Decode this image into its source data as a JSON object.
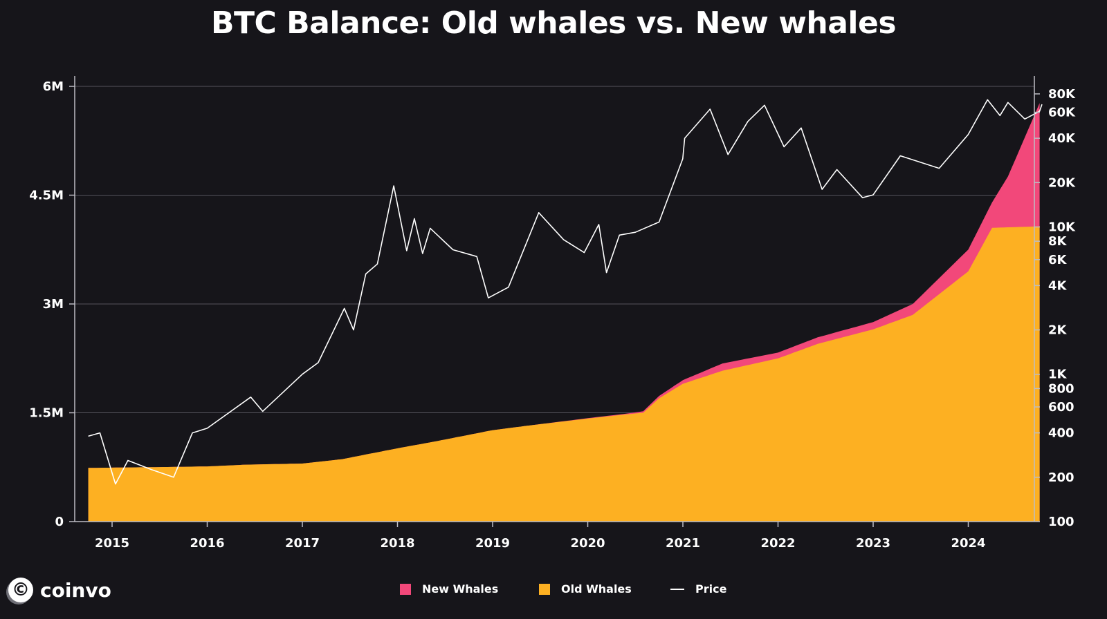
{
  "chart_data": {
    "type": "area",
    "title": "BTC Balance: Old whales vs. New whales",
    "x_ticks": [
      "2015",
      "2016",
      "2017",
      "2018",
      "2019",
      "2020",
      "2021",
      "2022",
      "2023",
      "2024"
    ],
    "y_left_ticks": [
      {
        "value": 0,
        "label": "0"
      },
      {
        "value": 1500000,
        "label": "1.5M"
      },
      {
        "value": 3000000,
        "label": "3M"
      },
      {
        "value": 4500000,
        "label": "4.5M"
      },
      {
        "value": 6000000,
        "label": "6M"
      }
    ],
    "y_left_range": [
      0,
      6000000
    ],
    "y_right_scale": "log",
    "y_right_range": [
      100,
      90000
    ],
    "y_right_ticks": [
      {
        "value": 100,
        "label": "100"
      },
      {
        "value": 200,
        "label": "200"
      },
      {
        "value": 400,
        "label": "400"
      },
      {
        "value": 600,
        "label": "600"
      },
      {
        "value": 800,
        "label": "800"
      },
      {
        "value": 1000,
        "label": "1K"
      },
      {
        "value": 2000,
        "label": "2K"
      },
      {
        "value": 4000,
        "label": "4K"
      },
      {
        "value": 6000,
        "label": "6K"
      },
      {
        "value": 8000,
        "label": "8K"
      },
      {
        "value": 10000,
        "label": "10K"
      },
      {
        "value": 20000,
        "label": "20K"
      },
      {
        "value": 40000,
        "label": "40K"
      },
      {
        "value": 60000,
        "label": "60K"
      },
      {
        "value": 80000,
        "label": "80K"
      }
    ],
    "grid": "horizontal",
    "legend_position": "bottom",
    "series": [
      {
        "name": "Old Whales",
        "kind": "area",
        "axis": "left",
        "color": "#fdb022",
        "points": [
          [
            "2014-10-01",
            740000
          ],
          [
            "2015-06-01",
            750000
          ],
          [
            "2016-01-01",
            760000
          ],
          [
            "2016-06-01",
            785000
          ],
          [
            "2017-01-01",
            800000
          ],
          [
            "2017-06-01",
            860000
          ],
          [
            "2018-01-01",
            1010000
          ],
          [
            "2018-06-01",
            1110000
          ],
          [
            "2019-01-01",
            1260000
          ],
          [
            "2019-06-01",
            1330000
          ],
          [
            "2020-01-01",
            1420000
          ],
          [
            "2020-06-01",
            1480000
          ],
          [
            "2020-08-01",
            1500000
          ],
          [
            "2020-10-01",
            1700000
          ],
          [
            "2021-01-01",
            1900000
          ],
          [
            "2021-06-01",
            2080000
          ],
          [
            "2022-01-01",
            2250000
          ],
          [
            "2022-06-01",
            2450000
          ],
          [
            "2023-01-01",
            2650000
          ],
          [
            "2023-06-01",
            2850000
          ],
          [
            "2024-01-01",
            3450000
          ],
          [
            "2024-04-01",
            4050000
          ],
          [
            "2024-10-01",
            4070000
          ]
        ]
      },
      {
        "name": "New Whales",
        "kind": "area",
        "axis": "left",
        "color": "#f2487a",
        "stack_on": "Old Whales",
        "points": [
          [
            "2014-10-01",
            0
          ],
          [
            "2019-06-01",
            0
          ],
          [
            "2020-06-01",
            10000
          ],
          [
            "2021-01-01",
            50000
          ],
          [
            "2021-06-01",
            100000
          ],
          [
            "2022-01-01",
            80000
          ],
          [
            "2022-06-01",
            90000
          ],
          [
            "2023-01-01",
            100000
          ],
          [
            "2023-06-01",
            150000
          ],
          [
            "2024-01-01",
            300000
          ],
          [
            "2024-04-01",
            350000
          ],
          [
            "2024-06-01",
            700000
          ],
          [
            "2024-10-01",
            1700000
          ]
        ]
      },
      {
        "name": "Price",
        "kind": "line",
        "axis": "right",
        "color": "#ffffff",
        "points": [
          [
            "2014-10-01",
            380
          ],
          [
            "2014-11-15",
            400
          ],
          [
            "2015-01-14",
            180
          ],
          [
            "2015-03-01",
            260
          ],
          [
            "2015-06-01",
            225
          ],
          [
            "2015-08-24",
            200
          ],
          [
            "2015-11-05",
            400
          ],
          [
            "2016-01-01",
            430
          ],
          [
            "2016-06-16",
            700
          ],
          [
            "2016-08-01",
            560
          ],
          [
            "2017-01-01",
            1000
          ],
          [
            "2017-03-01",
            1200
          ],
          [
            "2017-06-10",
            2800
          ],
          [
            "2017-07-15",
            2000
          ],
          [
            "2017-09-01",
            4800
          ],
          [
            "2017-10-15",
            5600
          ],
          [
            "2017-12-17",
            19000
          ],
          [
            "2018-02-06",
            6900
          ],
          [
            "2018-03-05",
            11400
          ],
          [
            "2018-04-06",
            6600
          ],
          [
            "2018-05-05",
            9800
          ],
          [
            "2018-08-01",
            7000
          ],
          [
            "2018-11-01",
            6300
          ],
          [
            "2018-12-15",
            3300
          ],
          [
            "2019-03-01",
            3900
          ],
          [
            "2019-06-26",
            12500
          ],
          [
            "2019-09-30",
            8200
          ],
          [
            "2019-12-18",
            6700
          ],
          [
            "2020-02-13",
            10400
          ],
          [
            "2020-03-12",
            4900
          ],
          [
            "2020-05-01",
            8800
          ],
          [
            "2020-07-01",
            9200
          ],
          [
            "2020-10-01",
            10800
          ],
          [
            "2020-12-31",
            29000
          ],
          [
            "2021-01-08",
            40000
          ],
          [
            "2021-04-14",
            63000
          ],
          [
            "2021-06-22",
            31000
          ],
          [
            "2021-09-07",
            52000
          ],
          [
            "2021-11-10",
            67000
          ],
          [
            "2022-01-24",
            35000
          ],
          [
            "2022-03-29",
            47000
          ],
          [
            "2022-06-18",
            18000
          ],
          [
            "2022-08-14",
            24500
          ],
          [
            "2022-11-21",
            15800
          ],
          [
            "2023-01-01",
            16500
          ],
          [
            "2023-04-14",
            30400
          ],
          [
            "2023-09-11",
            25000
          ],
          [
            "2023-12-31",
            42300
          ],
          [
            "2024-03-14",
            73000
          ],
          [
            "2024-05-01",
            57000
          ],
          [
            "2024-06-01",
            70000
          ],
          [
            "2024-08-05",
            54000
          ],
          [
            "2024-10-01",
            61000
          ],
          [
            "2024-10-10",
            68000
          ]
        ]
      }
    ]
  },
  "legend": {
    "new_whales": "New Whales",
    "old_whales": "Old Whales",
    "price": "Price",
    "new_whales_color": "#f2487a",
    "old_whales_color": "#fdb022"
  },
  "brand": {
    "name": "coinvo",
    "icon": "copyright-icon"
  }
}
